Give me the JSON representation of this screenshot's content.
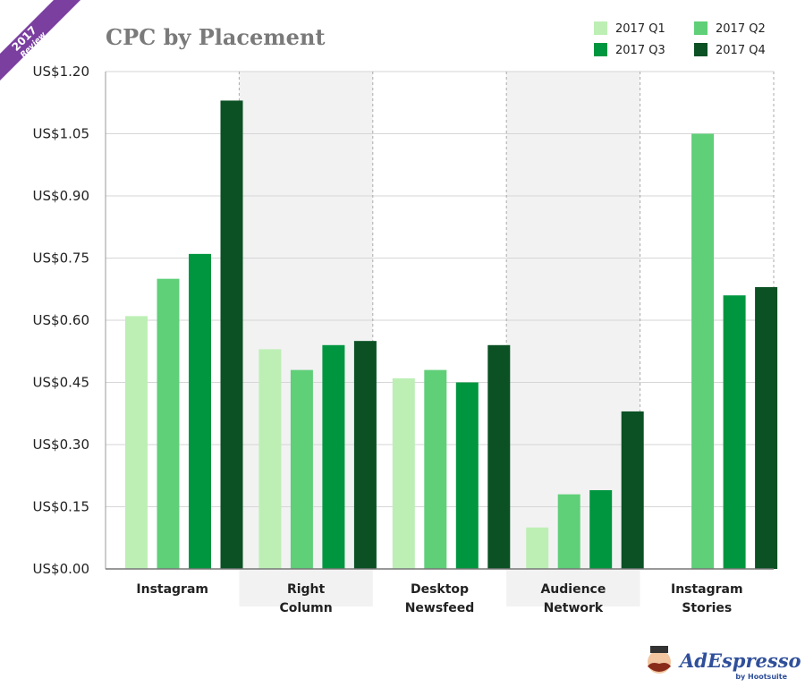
{
  "badge": {
    "year": "2017",
    "label": "Review",
    "color": "#7b3fa0"
  },
  "logo": {
    "brand": "AdEspresso",
    "sub": "by Hootsuite"
  },
  "chart_data": {
    "type": "bar",
    "title": "CPC by Placement",
    "xlabel": "",
    "ylabel": "",
    "ylim": [
      0,
      1.2
    ],
    "yticks": [
      0,
      0.15,
      0.3,
      0.45,
      0.6,
      0.75,
      0.9,
      1.05,
      1.2
    ],
    "ytick_labels": [
      "US$0.00",
      "US$0.15",
      "US$0.30",
      "US$0.45",
      "US$0.60",
      "US$0.75",
      "US$0.90",
      "US$1.05",
      "US$1.20"
    ],
    "grid": true,
    "legend_position": "top-right",
    "categories": [
      [
        "Instagram"
      ],
      [
        "Right",
        "Column"
      ],
      [
        "Desktop",
        "Newsfeed"
      ],
      [
        "Audience",
        "Network"
      ],
      [
        "Instagram",
        "Stories"
      ]
    ],
    "shaded_categories": [
      1,
      3
    ],
    "series": [
      {
        "name": "2017 Q1",
        "color": "#bdefb5",
        "values": [
          0.61,
          0.53,
          0.46,
          0.1,
          null
        ]
      },
      {
        "name": "2017 Q2",
        "color": "#5fcf78",
        "values": [
          0.7,
          0.48,
          0.48,
          0.18,
          1.05
        ]
      },
      {
        "name": "2017 Q3",
        "color": "#00963f",
        "values": [
          0.76,
          0.54,
          0.45,
          0.19,
          0.66
        ]
      },
      {
        "name": "2017 Q4",
        "color": "#0b5124",
        "values": [
          1.13,
          0.55,
          0.54,
          0.38,
          0.68
        ]
      }
    ]
  }
}
